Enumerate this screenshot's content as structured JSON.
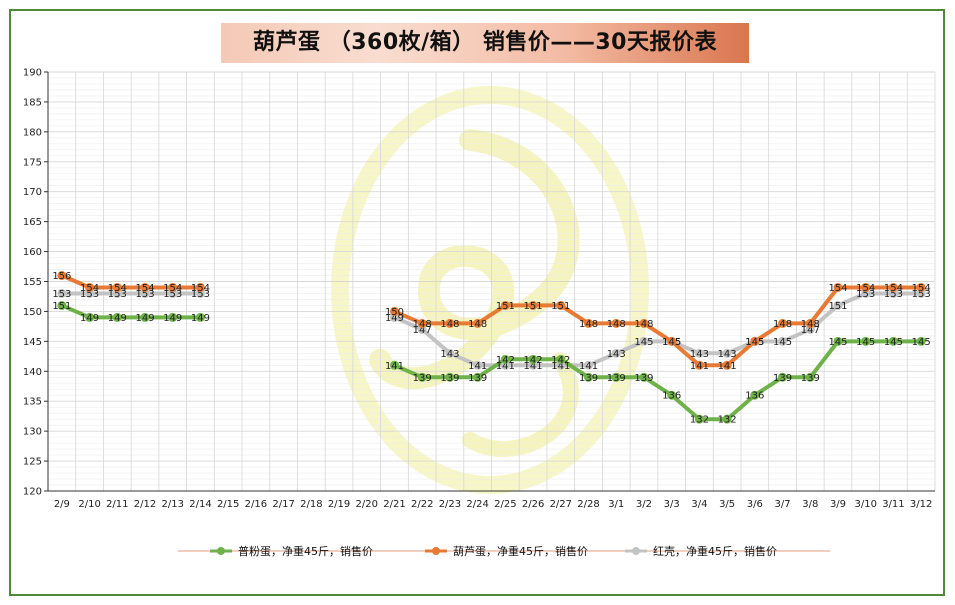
{
  "title": "葫芦蛋 （360枚/箱） 销售价——30天报价表",
  "colors": {
    "green": "#6fb24a",
    "orange": "#e77a35",
    "gray": "#c3c3c3",
    "frame": "#4e8a3a",
    "grid": "#d7d7d7"
  },
  "chart_data": {
    "type": "line",
    "title": "葫芦蛋 （360枚/箱） 销售价——30天报价表",
    "xlabel": "",
    "ylabel": "",
    "ylim": [
      120,
      190
    ],
    "yticks": [
      120,
      125,
      130,
      135,
      140,
      145,
      150,
      155,
      160,
      165,
      170,
      175,
      180,
      185,
      190
    ],
    "categories": [
      "2/9",
      "2/10",
      "2/11",
      "2/12",
      "2/13",
      "2/14",
      "2/15",
      "2/16",
      "2/17",
      "2/18",
      "2/19",
      "2/20",
      "2/21",
      "2/22",
      "2/23",
      "2/24",
      "2/25",
      "2/26",
      "2/27",
      "2/28",
      "3/1",
      "3/2",
      "3/3",
      "3/4",
      "3/5",
      "3/6",
      "3/7",
      "3/8",
      "3/9",
      "3/10",
      "3/11",
      "3/12"
    ],
    "series": [
      {
        "name": "红壳，净重45斤，销售价",
        "color": "#c3c3c3",
        "values": [
          153,
          153,
          153,
          153,
          153,
          153,
          null,
          null,
          null,
          null,
          null,
          null,
          149,
          147,
          143,
          141,
          141,
          141,
          141,
          141,
          143,
          145,
          145,
          143,
          143,
          145,
          145,
          147,
          151,
          153,
          153,
          153
        ]
      },
      {
        "name": "葫芦蛋，净重45斤，销售价",
        "color": "#e77a35",
        "values": [
          156,
          154,
          154,
          154,
          154,
          154,
          null,
          null,
          null,
          null,
          null,
          null,
          150,
          148,
          148,
          148,
          151,
          151,
          151,
          148,
          148,
          148,
          145,
          141,
          141,
          145,
          148,
          148,
          154,
          154,
          154,
          154
        ]
      },
      {
        "name": "普粉蛋，净重45斤，销售价",
        "color": "#6fb24a",
        "values": [
          151,
          149,
          149,
          149,
          149,
          149,
          null,
          null,
          null,
          null,
          null,
          null,
          141,
          139,
          139,
          139,
          142,
          142,
          142,
          139,
          139,
          139,
          136,
          132,
          132,
          136,
          139,
          139,
          145,
          145,
          145,
          145
        ]
      }
    ],
    "legend": {
      "position": "bottom",
      "order": [
        "普粉蛋，净重45斤，销售价",
        "葫芦蛋，净重45斤，销售价",
        "红壳，净重45斤，销售价"
      ]
    }
  }
}
